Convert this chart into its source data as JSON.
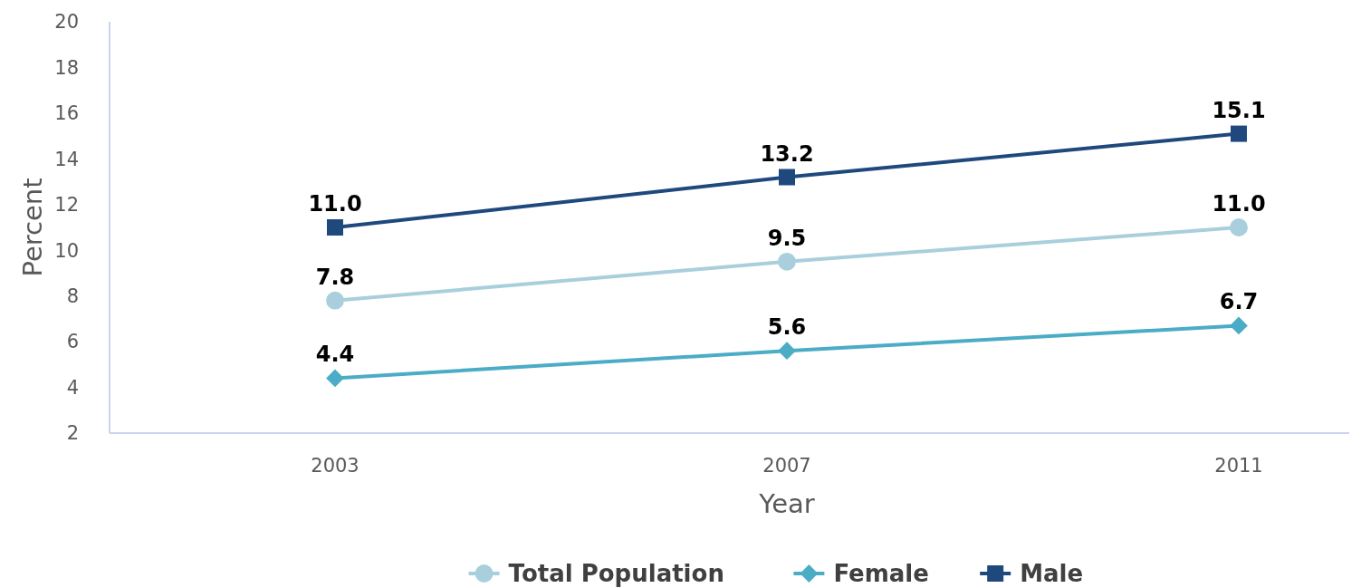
{
  "chart_data": {
    "type": "line",
    "xlabel": "Year",
    "ylabel": "Percent",
    "categories": [
      "2003",
      "2007",
      "2011"
    ],
    "series": [
      {
        "name": "Total Population",
        "color": "#a9cfdc",
        "marker": "circle",
        "values": [
          7.8,
          9.5,
          11.0
        ],
        "value_labels": [
          "7.8",
          "9.5",
          "11.0"
        ]
      },
      {
        "name": "Female",
        "color": "#4bacc6",
        "marker": "diamond",
        "values": [
          4.4,
          5.6,
          6.7
        ],
        "value_labels": [
          "4.4",
          "5.6",
          "6.7"
        ]
      },
      {
        "name": "Male",
        "color": "#1f497d",
        "marker": "square",
        "values": [
          11.0,
          13.2,
          15.1
        ],
        "value_labels": [
          "11.0",
          "13.2",
          "15.1"
        ]
      }
    ],
    "ylim": [
      2,
      20
    ],
    "yticks": [
      2,
      4,
      6,
      8,
      10,
      12,
      14,
      16,
      18,
      20
    ],
    "grid": false,
    "legend": "bottom",
    "line_style": "solid"
  }
}
